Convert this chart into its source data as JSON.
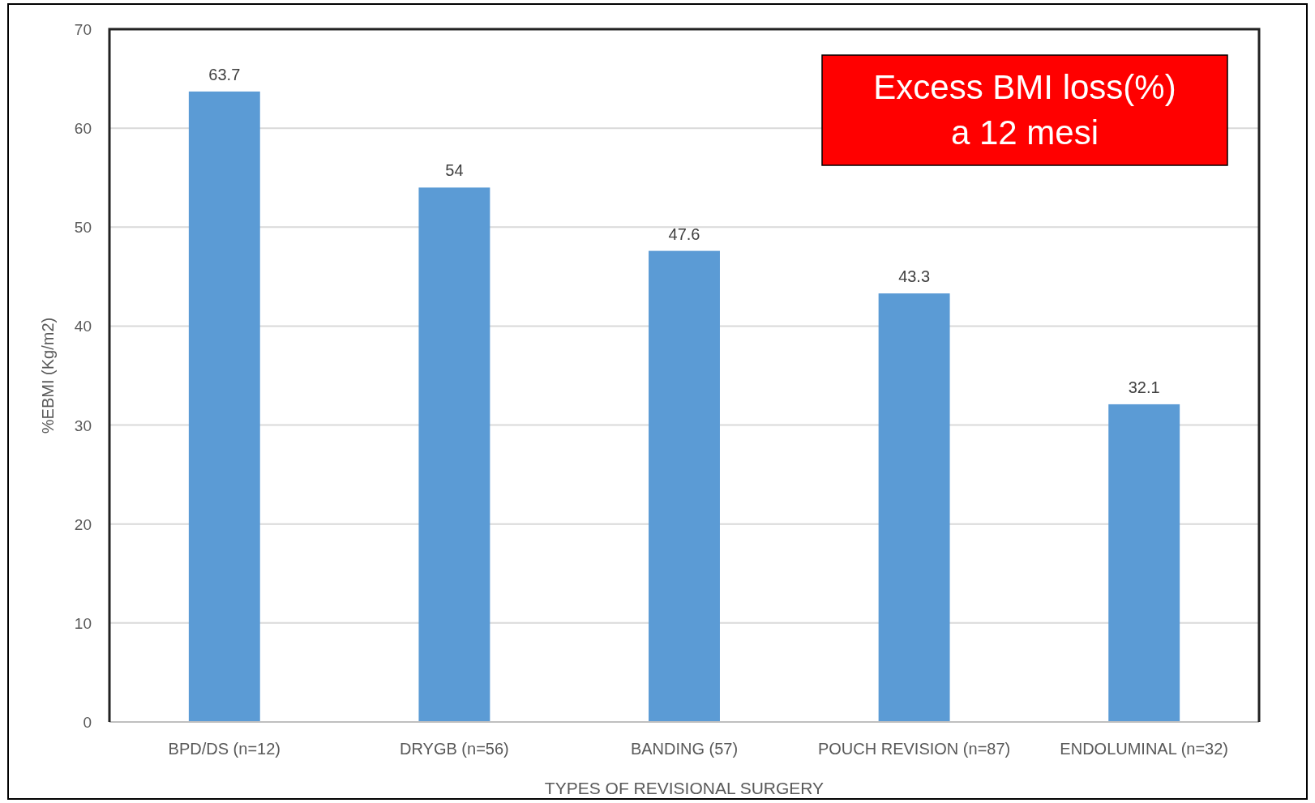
{
  "chart_data": {
    "type": "bar",
    "title": "Excess BMI loss(%)\na 12 mesi",
    "xlabel": "TYPES OF REVISIONAL SURGERY",
    "ylabel": "%EBMI (Kg/m2)",
    "categories": [
      "BPD/DS (n=12)",
      "DRYGB (n=56)",
      "BANDING (57)",
      "POUCH REVISION (n=87)",
      "ENDOLUMINAL (n=32)"
    ],
    "values": [
      63.7,
      54,
      47.6,
      43.3,
      32.1
    ],
    "color": "#5b9bd5",
    "ylim": [
      0,
      70
    ],
    "yticks": [
      0,
      10,
      20,
      30,
      40,
      50,
      60,
      70
    ],
    "grid": "y",
    "data_labels": true
  }
}
